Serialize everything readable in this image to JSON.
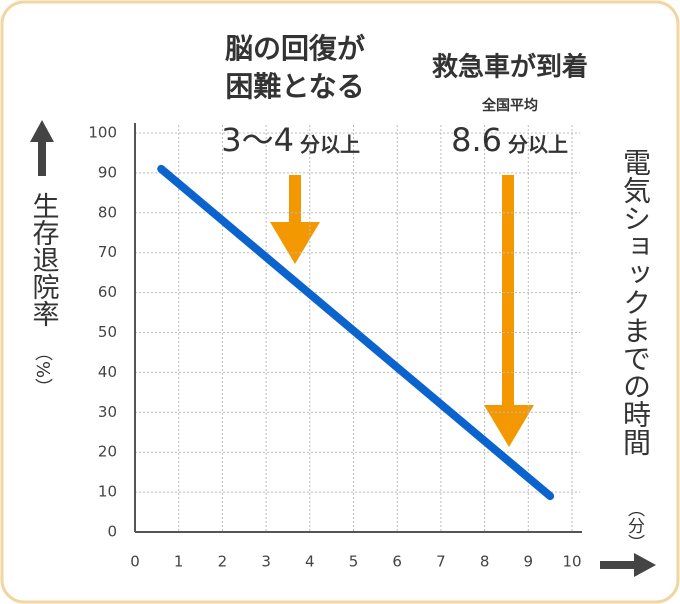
{
  "chart_data": {
    "type": "line",
    "x": [
      0.6,
      9.5
    ],
    "values": [
      91,
      9
    ],
    "color": "#0b63ce",
    "xlim": [
      0,
      10
    ],
    "ylim": [
      0,
      100
    ],
    "xticks": [
      0,
      1,
      2,
      3,
      4,
      5,
      6,
      7,
      8,
      9,
      10
    ],
    "yticks": [
      0,
      10,
      20,
      30,
      40,
      50,
      60,
      70,
      80,
      90,
      100
    ],
    "grid": true,
    "ylabel": "生存退院率",
    "ylabel_unit": "（%）",
    "xlabel": "電気ショックまでの時間",
    "xlabel_unit": "（分）",
    "annotations": [
      "脳の回復が",
      "困難となる",
      "救急車が到着",
      "全国平均",
      "3〜4",
      "分以上",
      "8.6",
      "分以上"
    ]
  }
}
